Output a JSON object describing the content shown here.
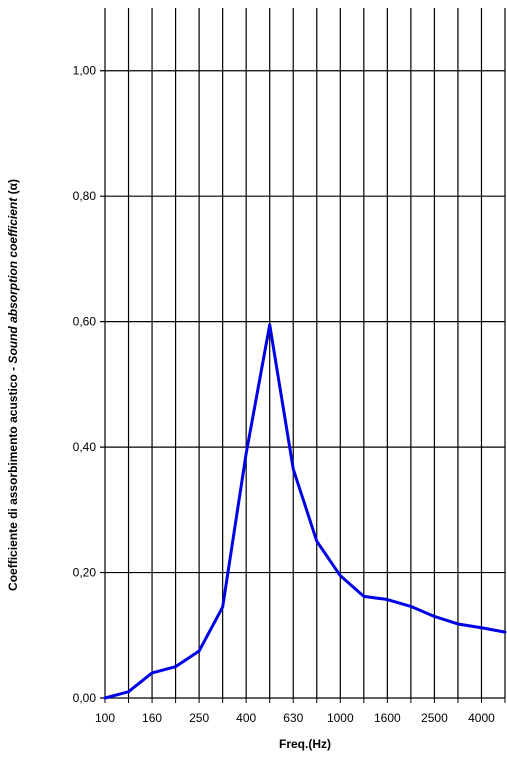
{
  "chart_data": {
    "type": "line",
    "xlabel": "Freq.(Hz)",
    "ylabel_prefix": "Coefficiente di assorbimento acustico - ",
    "ylabel_italic": "Sound absorption coefficient",
    "ylabel_suffix": " (α)",
    "x": [
      "100",
      "125",
      "160",
      "200",
      "250",
      "315",
      "400",
      "500",
      "630",
      "800",
      "1000",
      "1250",
      "1600",
      "2000",
      "2500",
      "3150",
      "4000",
      "5000"
    ],
    "x_tick_labels": [
      "100",
      "160",
      "250",
      "400",
      "630",
      "1000",
      "1600",
      "2500",
      "4000"
    ],
    "y_tick_labels": [
      "0,00",
      "0,20",
      "0,40",
      "0,60",
      "0,80",
      "1,00"
    ],
    "ylim": [
      0,
      1.1
    ],
    "grid": true,
    "series": [
      {
        "values": [
          0.0,
          0.01,
          0.04,
          0.05,
          0.075,
          0.145,
          0.39,
          0.595,
          0.365,
          0.25,
          0.195,
          0.162,
          0.157,
          0.146,
          0.13,
          0.118,
          0.112,
          0.105
        ]
      }
    ],
    "colors": {
      "line": "#0000e6",
      "grid": "#000000",
      "background": "#ffffff"
    }
  }
}
